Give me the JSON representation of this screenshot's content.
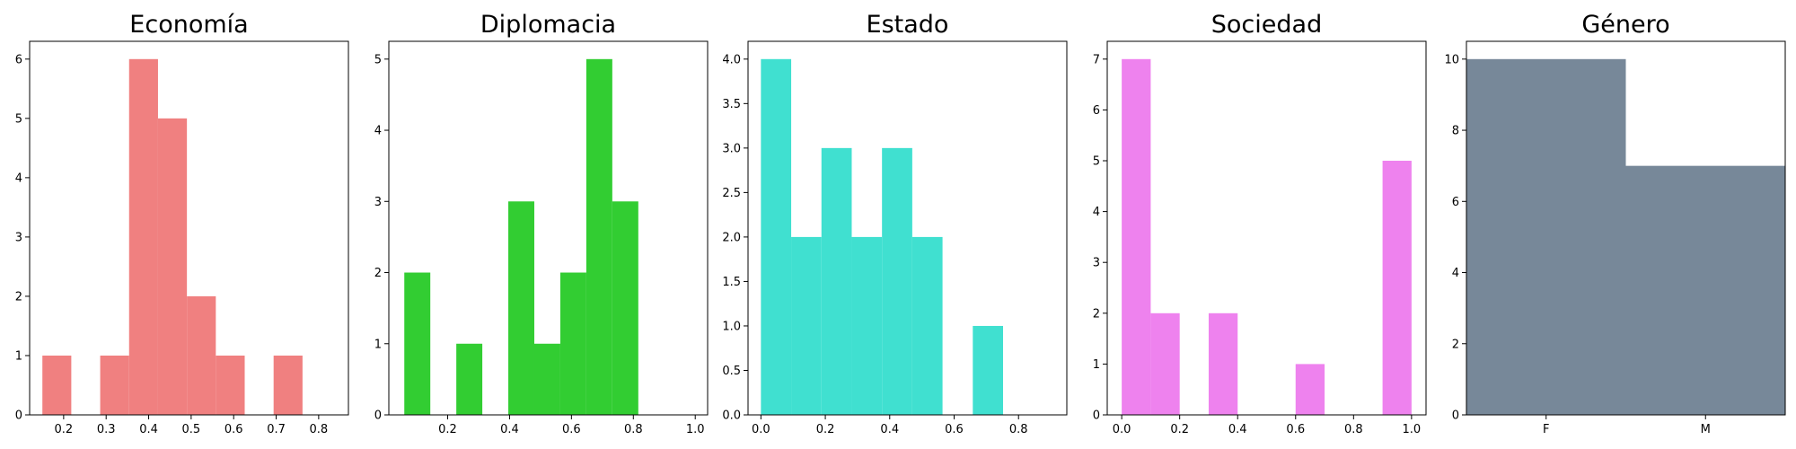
{
  "chart_data": [
    {
      "type": "bar",
      "title": "Economía",
      "color": "#f08080",
      "xlim": [
        0.12,
        0.87
      ],
      "ylim": [
        0,
        6.3
      ],
      "xticks": [
        "0.2",
        "0.3",
        "0.4",
        "0.5",
        "0.6",
        "0.7",
        "0.8"
      ],
      "xtick_values": [
        0.2,
        0.3,
        0.4,
        0.5,
        0.6,
        0.7,
        0.8
      ],
      "yticks": [
        "0",
        "1",
        "2",
        "3",
        "4",
        "5",
        "6"
      ],
      "ytick_values": [
        0,
        1,
        2,
        3,
        4,
        5,
        6
      ],
      "bins": [
        {
          "x0": 0.15,
          "x1": 0.218,
          "value": 1
        },
        {
          "x0": 0.218,
          "x1": 0.286,
          "value": 0
        },
        {
          "x0": 0.286,
          "x1": 0.354,
          "value": 1
        },
        {
          "x0": 0.354,
          "x1": 0.422,
          "value": 6
        },
        {
          "x0": 0.422,
          "x1": 0.49,
          "value": 5
        },
        {
          "x0": 0.49,
          "x1": 0.558,
          "value": 2
        },
        {
          "x0": 0.558,
          "x1": 0.626,
          "value": 1
        },
        {
          "x0": 0.626,
          "x1": 0.694,
          "value": 0
        },
        {
          "x0": 0.694,
          "x1": 0.762,
          "value": 1
        }
      ],
      "grid": false
    },
    {
      "type": "bar",
      "title": "Diplomacia",
      "color": "#32cd32",
      "xlim": [
        0.01,
        1.04
      ],
      "ylim": [
        0,
        5.25
      ],
      "xticks": [
        "0.2",
        "0.4",
        "0.6",
        "0.8",
        "1.0"
      ],
      "xtick_values": [
        0.2,
        0.4,
        0.6,
        0.8,
        1.0
      ],
      "yticks": [
        "0",
        "1",
        "2",
        "3",
        "4",
        "5"
      ],
      "ytick_values": [
        0,
        1,
        2,
        3,
        4,
        5
      ],
      "bins": [
        {
          "x0": 0.06,
          "x1": 0.144,
          "value": 2
        },
        {
          "x0": 0.144,
          "x1": 0.228,
          "value": 0
        },
        {
          "x0": 0.228,
          "x1": 0.312,
          "value": 1
        },
        {
          "x0": 0.312,
          "x1": 0.396,
          "value": 0
        },
        {
          "x0": 0.396,
          "x1": 0.48,
          "value": 3
        },
        {
          "x0": 0.48,
          "x1": 0.564,
          "value": 1
        },
        {
          "x0": 0.564,
          "x1": 0.648,
          "value": 2
        },
        {
          "x0": 0.648,
          "x1": 0.732,
          "value": 5
        },
        {
          "x0": 0.732,
          "x1": 0.816,
          "value": 3
        }
      ],
      "grid": false
    },
    {
      "type": "bar",
      "title": "Estado",
      "color": "#40e0d0",
      "xlim": [
        -0.04,
        0.95
      ],
      "ylim": [
        0,
        4.2
      ],
      "xticks": [
        "0.0",
        "0.2",
        "0.4",
        "0.6",
        "0.8"
      ],
      "xtick_values": [
        0.0,
        0.2,
        0.4,
        0.6,
        0.8
      ],
      "yticks": [
        "0.0",
        "0.5",
        "1.0",
        "1.5",
        "2.0",
        "2.5",
        "3.0",
        "3.5",
        "4.0"
      ],
      "ytick_values": [
        0,
        0.5,
        1.0,
        1.5,
        2.0,
        2.5,
        3.0,
        3.5,
        4.0
      ],
      "bins": [
        {
          "x0": 0.0,
          "x1": 0.094,
          "value": 4
        },
        {
          "x0": 0.094,
          "x1": 0.188,
          "value": 2
        },
        {
          "x0": 0.188,
          "x1": 0.282,
          "value": 3
        },
        {
          "x0": 0.282,
          "x1": 0.376,
          "value": 2
        },
        {
          "x0": 0.376,
          "x1": 0.47,
          "value": 3
        },
        {
          "x0": 0.47,
          "x1": 0.564,
          "value": 2
        },
        {
          "x0": 0.564,
          "x1": 0.658,
          "value": 0
        },
        {
          "x0": 0.658,
          "x1": 0.752,
          "value": 1
        }
      ],
      "grid": false
    },
    {
      "type": "bar",
      "title": "Sociedad",
      "color": "#ee82ee",
      "xlim": [
        -0.05,
        1.05
      ],
      "ylim": [
        0,
        7.35
      ],
      "xticks": [
        "0.0",
        "0.2",
        "0.4",
        "0.6",
        "0.8",
        "1.0"
      ],
      "xtick_values": [
        0.0,
        0.2,
        0.4,
        0.6,
        0.8,
        1.0
      ],
      "yticks": [
        "0",
        "1",
        "2",
        "3",
        "4",
        "5",
        "6",
        "7"
      ],
      "ytick_values": [
        0,
        1,
        2,
        3,
        4,
        5,
        6,
        7
      ],
      "bins": [
        {
          "x0": 0.0,
          "x1": 0.1,
          "value": 7
        },
        {
          "x0": 0.1,
          "x1": 0.2,
          "value": 2
        },
        {
          "x0": 0.2,
          "x1": 0.3,
          "value": 0
        },
        {
          "x0": 0.3,
          "x1": 0.4,
          "value": 2
        },
        {
          "x0": 0.4,
          "x1": 0.5,
          "value": 0
        },
        {
          "x0": 0.5,
          "x1": 0.6,
          "value": 0
        },
        {
          "x0": 0.6,
          "x1": 0.7,
          "value": 1
        },
        {
          "x0": 0.7,
          "x1": 0.8,
          "value": 0
        },
        {
          "x0": 0.8,
          "x1": 0.9,
          "value": 0
        },
        {
          "x0": 0.9,
          "x1": 1.0,
          "value": 5
        }
      ],
      "grid": false
    },
    {
      "type": "bar",
      "title": "Género",
      "color": "#778899",
      "xlim": [
        -0.5,
        1.5
      ],
      "ylim": [
        0,
        10.5
      ],
      "xticks": [
        "F",
        "M"
      ],
      "xtick_values": [
        0,
        1
      ],
      "yticks": [
        "0",
        "2",
        "4",
        "6",
        "8",
        "10"
      ],
      "ytick_values": [
        0,
        2,
        4,
        6,
        8,
        10
      ],
      "bins": [
        {
          "x0": -0.5,
          "x1": 0.5,
          "value": 10
        },
        {
          "x0": 0.5,
          "x1": 1.5,
          "value": 7
        }
      ],
      "grid": false
    }
  ]
}
